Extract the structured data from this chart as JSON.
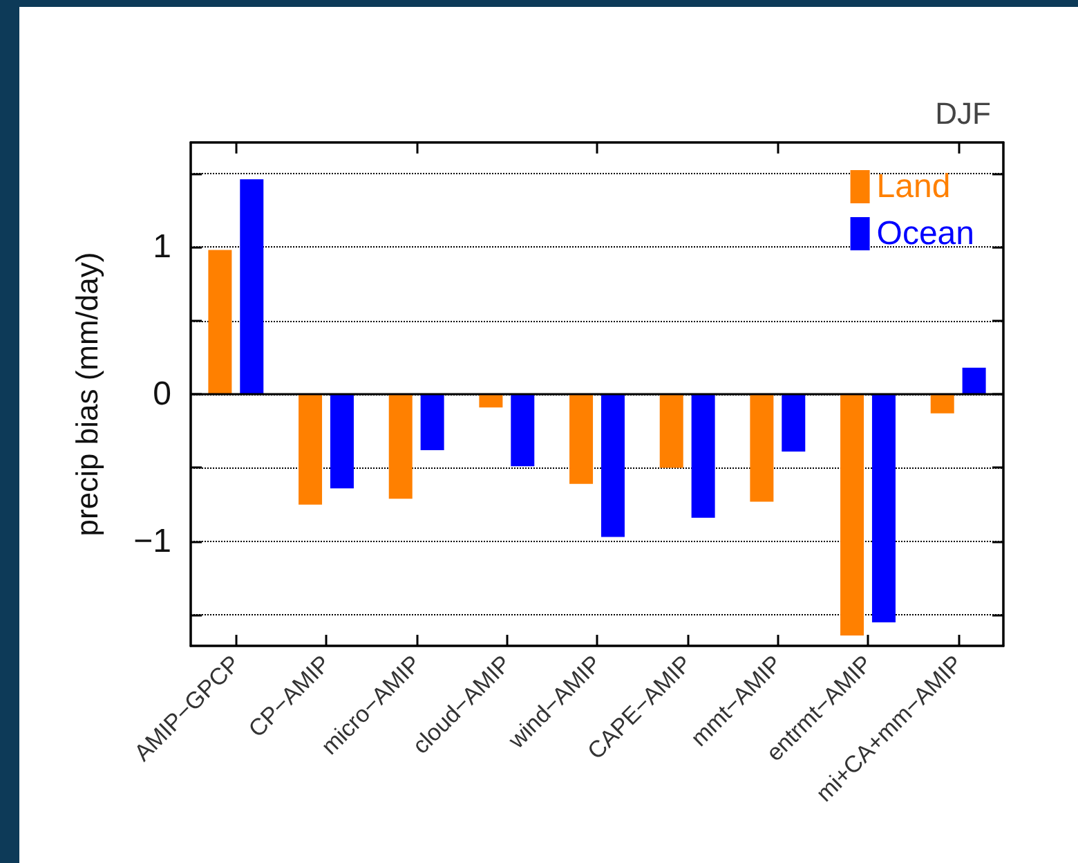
{
  "chart_data": {
    "type": "bar",
    "title": "DJF",
    "ylabel": "precip bias (mm/day)",
    "categories": [
      "AMIP−GPCP",
      "CP−AMIP",
      "micro−AMIP",
      "cloud−AMIP",
      "wind−AMIP",
      "CAPE−AMIP",
      "mmt−AMIP",
      "entrmt−AMIP",
      "mi+CA+mm−AMIP"
    ],
    "series": [
      {
        "name": "Land",
        "color": "#ff8000",
        "values": [
          0.98,
          -0.75,
          -0.71,
          -0.09,
          -0.61,
          -0.5,
          -0.73,
          -1.64,
          -0.13
        ]
      },
      {
        "name": "Ocean",
        "color": "#0000ff",
        "values": [
          1.46,
          -0.64,
          -0.38,
          -0.49,
          -0.97,
          -0.84,
          -0.39,
          -1.55,
          0.18
        ]
      }
    ],
    "ylim": [
      -1.71,
      1.71
    ],
    "yticks": [
      {
        "value": -1.5,
        "label": null
      },
      -1,
      {
        "value": -0.5,
        "label": null
      },
      0,
      {
        "value": 0.5,
        "label": null
      },
      1,
      {
        "value": 1.5,
        "label": null
      }
    ],
    "ref_lines": [
      {
        "axis": "y",
        "value": 0,
        "color": "#000000",
        "line_style": "solid"
      }
    ],
    "grid": "y",
    "legend": "top right"
  }
}
